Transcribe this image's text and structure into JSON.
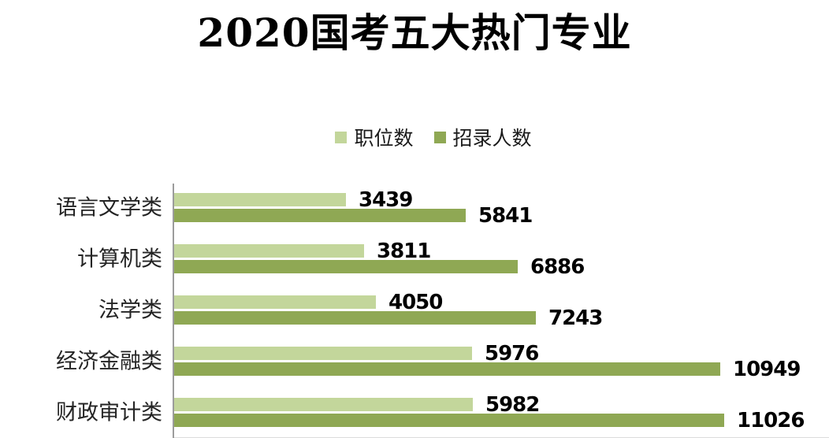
{
  "chart_data": {
    "type": "bar",
    "orientation": "horizontal",
    "title": "2020国考五大热门专业",
    "categories": [
      "语言文学类",
      "计算机类",
      "法学类",
      "经济金融类",
      "财政审计类"
    ],
    "series": [
      {
        "name": "职位数",
        "color": "#c3d69b",
        "values": [
          3439,
          3811,
          4050,
          5976,
          5982
        ]
      },
      {
        "name": "招录人数",
        "color": "#8fa854",
        "values": [
          5841,
          6886,
          7243,
          10949,
          11026
        ]
      }
    ],
    "value_labels": true,
    "legend_position": "top",
    "xlim": [
      0,
      11026
    ],
    "grid": false,
    "axis_color": "#9c9c9c",
    "label_color": "#000000"
  }
}
